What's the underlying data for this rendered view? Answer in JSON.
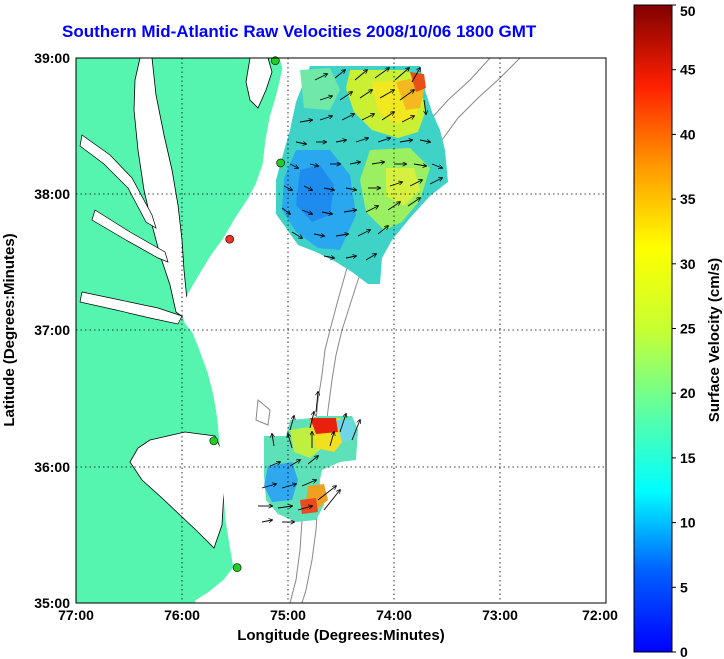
{
  "title": "Southern Mid-Atlantic Raw Velocities 2008/10/06 1800 GMT",
  "map": {
    "xlabel": "Longitude (Degrees:Minutes)",
    "ylabel": "Latitude (Degrees:Minutes)",
    "lon_range": [
      -77,
      -72
    ],
    "lat_range": [
      35,
      39
    ],
    "x_ticks": [
      "77:00",
      "76:00",
      "75:00",
      "74:00",
      "73:00",
      "72:00"
    ],
    "y_ticks": [
      "39:00",
      "38:00",
      "37:00",
      "36:00",
      "35:00"
    ],
    "grid": "dotted",
    "land_color": "#55f5b0",
    "sites": [
      {
        "lon": -75.12,
        "lat": 38.98,
        "color": "#22cc22"
      },
      {
        "lon": -75.07,
        "lat": 38.23,
        "color": "#22cc22"
      },
      {
        "lon": -75.55,
        "lat": 37.67,
        "color": "#ee3322"
      },
      {
        "lon": -75.7,
        "lat": 36.19,
        "color": "#22cc22"
      },
      {
        "lon": -75.48,
        "lat": 35.26,
        "color": "#22cc22"
      }
    ]
  },
  "colorbar": {
    "label": "Surface Velocity (cm/s)",
    "min": 0,
    "max": 50,
    "ticks": [
      "50",
      "45",
      "40",
      "35",
      "30",
      "25",
      "20",
      "15",
      "10",
      "5",
      "0"
    ]
  }
}
